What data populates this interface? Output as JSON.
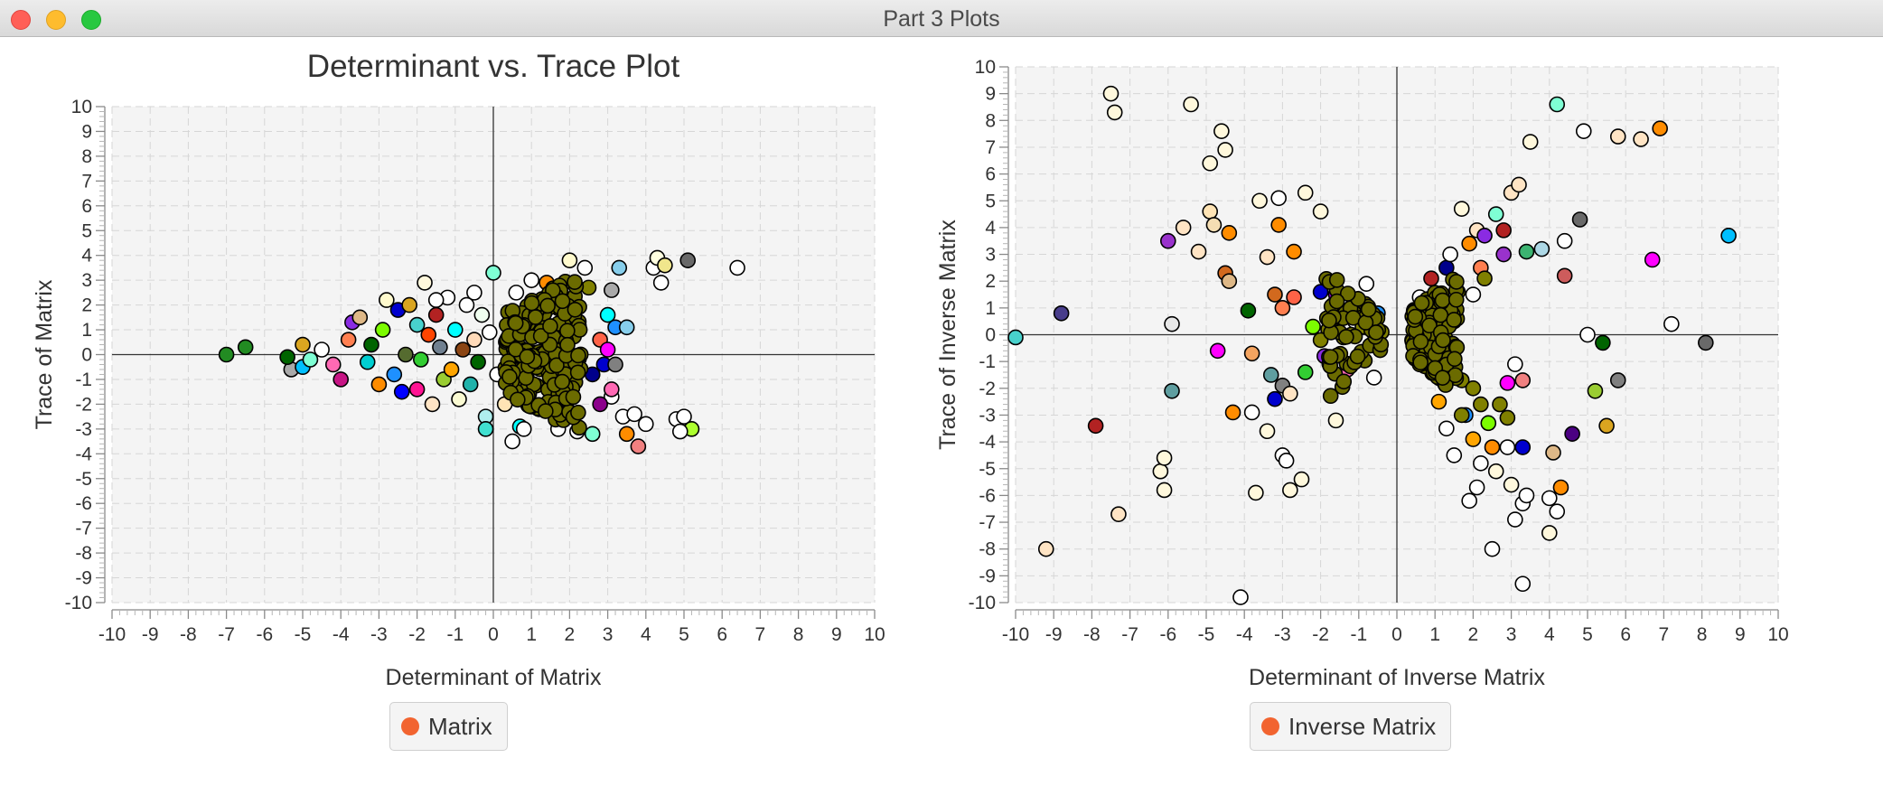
{
  "window": {
    "title": "Part 3 Plots"
  },
  "chart_data": [
    {
      "type": "scatter",
      "title": "Determinant vs. Trace Plot",
      "xlabel": "Determinant of Matrix",
      "ylabel": "Trace of Matrix",
      "xlim": [
        -10,
        10
      ],
      "ylim": [
        -10,
        10
      ],
      "xticks": [
        -10,
        -9,
        -8,
        -7,
        -6,
        -5,
        -4,
        -3,
        -2,
        -1,
        0,
        1,
        2,
        3,
        4,
        5,
        6,
        7,
        8,
        9,
        10
      ],
      "yticks": [
        -10,
        -9,
        -8,
        -7,
        -6,
        -5,
        -4,
        -3,
        -2,
        -1,
        0,
        1,
        2,
        3,
        4,
        5,
        6,
        7,
        8,
        9,
        10
      ],
      "grid": true,
      "legend_position": "bottom",
      "legend": [
        {
          "name": "Matrix",
          "color": "#f26430"
        }
      ],
      "points": [
        [
          -7.0,
          0.0,
          "#228b22"
        ],
        [
          -6.5,
          0.3,
          "#228b22"
        ],
        [
          -5.3,
          -0.6,
          "#a9a9a9"
        ],
        [
          -5.4,
          -0.1,
          "#006400"
        ],
        [
          -5.0,
          -0.5,
          "#00bfff"
        ],
        [
          -5.0,
          0.4,
          "#daa520"
        ],
        [
          -4.8,
          -0.2,
          "#7fffd4"
        ],
        [
          -4.5,
          0.2,
          "#ffffff"
        ],
        [
          -4.2,
          -0.4,
          "#ff69b4"
        ],
        [
          -4.0,
          -1.0,
          "#c71585"
        ],
        [
          -3.8,
          0.6,
          "#ff7f50"
        ],
        [
          -3.7,
          1.3,
          "#8a2be2"
        ],
        [
          -3.5,
          1.5,
          "#deb887"
        ],
        [
          -3.3,
          -0.3,
          "#00ced1"
        ],
        [
          -3.2,
          0.4,
          "#006400"
        ],
        [
          -3.0,
          -1.2,
          "#ff8c00"
        ],
        [
          -2.8,
          2.2,
          "#fffacd"
        ],
        [
          -2.9,
          1.0,
          "#7cfc00"
        ],
        [
          -2.6,
          -0.8,
          "#1e90ff"
        ],
        [
          -2.5,
          1.8,
          "#0000cd"
        ],
        [
          -2.4,
          -1.5,
          "#0000ff"
        ],
        [
          -2.3,
          0.0,
          "#556b2f"
        ],
        [
          -2.2,
          2.0,
          "#daa520"
        ],
        [
          -2.0,
          -1.4,
          "#ff1493"
        ],
        [
          -2.0,
          1.2,
          "#48d1cc"
        ],
        [
          -1.8,
          2.9,
          "#fff8dc"
        ],
        [
          -1.9,
          -0.2,
          "#32cd32"
        ],
        [
          -1.7,
          0.8,
          "#ff4500"
        ],
        [
          -1.6,
          -2.0,
          "#ffe4c4"
        ],
        [
          -1.5,
          1.6,
          "#b22222"
        ],
        [
          -1.4,
          0.3,
          "#708090"
        ],
        [
          -1.3,
          -1.0,
          "#9acd32"
        ],
        [
          -1.2,
          2.3,
          "#ffffff"
        ],
        [
          -1.1,
          -0.6,
          "#ffa500"
        ],
        [
          -1.0,
          1.0,
          "#00ffff"
        ],
        [
          -0.9,
          -1.8,
          "#fafad2"
        ],
        [
          -0.8,
          0.2,
          "#8b4513"
        ],
        [
          -0.7,
          2.0,
          "#ffffff"
        ],
        [
          -0.6,
          -1.2,
          "#20b2aa"
        ],
        [
          -0.5,
          0.6,
          "#ffdab9"
        ],
        [
          -0.4,
          -0.3,
          "#006400"
        ],
        [
          -0.3,
          1.6,
          "#f0fff0"
        ],
        [
          -0.2,
          -2.5,
          "#afeeee"
        ],
        [
          0.0,
          3.3,
          "#7fffd4"
        ],
        [
          -0.1,
          0.9,
          "#ffffff"
        ],
        [
          -0.2,
          -3.0,
          "#40e0d0"
        ],
        [
          0.1,
          -0.8,
          "#ffffff"
        ],
        [
          0.3,
          -2.0,
          "#ffe4b5"
        ],
        [
          0.5,
          -3.5,
          "#ffffff"
        ],
        [
          0.6,
          2.5,
          "#ffffff"
        ],
        [
          0.7,
          -2.9,
          "#00ffff"
        ],
        [
          1.0,
          3.0,
          "#ffffff"
        ],
        [
          1.2,
          -2.2,
          "#ffffff"
        ],
        [
          1.4,
          2.9,
          "#ff8c00"
        ],
        [
          1.7,
          -3.0,
          "#ffffff"
        ],
        [
          2.0,
          3.8,
          "#fffacd"
        ],
        [
          2.2,
          -3.1,
          "#ffffff"
        ],
        [
          2.4,
          3.5,
          "#ffffff"
        ],
        [
          2.6,
          -3.2,
          "#7fffd4"
        ],
        [
          2.8,
          0.6,
          "#ff6347"
        ],
        [
          2.9,
          -0.4,
          "#0000cd"
        ],
        [
          2.6,
          -0.8,
          "#00008b"
        ],
        [
          3.0,
          1.6,
          "#00ffff"
        ],
        [
          3.1,
          2.6,
          "#a9a9a9"
        ],
        [
          3.2,
          1.1,
          "#1e90ff"
        ],
        [
          3.3,
          3.5,
          "#87ceeb"
        ],
        [
          3.0,
          0.2,
          "#ff00ff"
        ],
        [
          3.1,
          -1.7,
          "#ffffff"
        ],
        [
          3.2,
          -0.4,
          "#808080"
        ],
        [
          3.4,
          -2.5,
          "#ffffff"
        ],
        [
          3.5,
          -3.2,
          "#ff8c00"
        ],
        [
          3.8,
          -3.7,
          "#f08080"
        ],
        [
          3.7,
          -2.4,
          "#ffffff"
        ],
        [
          4.0,
          -2.8,
          "#ffffff"
        ],
        [
          4.2,
          3.5,
          "#ffffff"
        ],
        [
          4.3,
          3.9,
          "#ffffe0"
        ],
        [
          4.4,
          2.9,
          "#ffffff"
        ],
        [
          4.5,
          3.6,
          "#f0e68c"
        ],
        [
          5.1,
          3.8,
          "#696969"
        ],
        [
          4.8,
          -2.6,
          "#ffffff"
        ],
        [
          5.0,
          -2.5,
          "#ffffff"
        ],
        [
          5.2,
          -3.0,
          "#adff2f"
        ],
        [
          4.9,
          -3.1,
          "#ffffff"
        ],
        [
          6.4,
          3.5,
          "#ffffff"
        ],
        [
          3.1,
          -1.4,
          "#ff69b4"
        ],
        [
          2.8,
          -2.0,
          "#8b008b"
        ],
        [
          3.5,
          1.1,
          "#87ceeb"
        ],
        [
          0.8,
          -3.0,
          "#ffffff"
        ],
        [
          -0.5,
          2.5,
          "#ffffff"
        ],
        [
          -1.5,
          2.2,
          "#ffffff"
        ],
        [
          1.8,
          2.2,
          "#ff8c00"
        ],
        [
          2.5,
          2.7,
          "#808000"
        ]
      ],
      "dense_cluster_color": "#6b6b00"
    },
    {
      "type": "scatter",
      "title": "",
      "xlabel": "Determinant of Inverse Matrix",
      "ylabel": "Trace of Inverse Matrix",
      "xlim": [
        -10,
        10
      ],
      "ylim": [
        -10,
        10
      ],
      "xticks": [
        -10,
        -9,
        -8,
        -7,
        -6,
        -5,
        -4,
        -3,
        -2,
        -1,
        0,
        1,
        2,
        3,
        4,
        5,
        6,
        7,
        8,
        9,
        10
      ],
      "yticks": [
        -10,
        -9,
        -8,
        -7,
        -6,
        -5,
        -4,
        -3,
        -2,
        -1,
        0,
        1,
        2,
        3,
        4,
        5,
        6,
        7,
        8,
        9,
        10
      ],
      "grid": true,
      "legend_position": "bottom",
      "legend": [
        {
          "name": "Inverse Matrix",
          "color": "#f26430"
        }
      ],
      "points": [
        [
          -10.0,
          -0.1,
          "#48d1cc"
        ],
        [
          -9.2,
          -8.0,
          "#ffe4c4"
        ],
        [
          -8.8,
          0.8,
          "#483d8b"
        ],
        [
          -7.9,
          -3.4,
          "#b22222"
        ],
        [
          -7.5,
          9.0,
          "#fff8dc"
        ],
        [
          -7.4,
          8.3,
          "#fff8dc"
        ],
        [
          -7.3,
          -6.7,
          "#ffe4c4"
        ],
        [
          -6.0,
          3.5,
          "#9932cc"
        ],
        [
          -5.9,
          0.4,
          "#e6e6e6"
        ],
        [
          -5.9,
          -2.1,
          "#5f9ea0"
        ],
        [
          -6.2,
          -5.1,
          "#fff8dc"
        ],
        [
          -6.1,
          -4.6,
          "#fff8dc"
        ],
        [
          -6.1,
          -5.8,
          "#fff8dc"
        ],
        [
          -5.6,
          4.0,
          "#ffe4c4"
        ],
        [
          -5.4,
          8.6,
          "#fff8dc"
        ],
        [
          -5.2,
          3.1,
          "#ffe4c4"
        ],
        [
          -4.9,
          4.6,
          "#ffe4b5"
        ],
        [
          -4.8,
          4.1,
          "#f5deb3"
        ],
        [
          -4.6,
          7.6,
          "#fff8dc"
        ],
        [
          -4.5,
          6.9,
          "#fff8dc"
        ],
        [
          -4.9,
          6.4,
          "#fff8dc"
        ],
        [
          -4.4,
          3.8,
          "#ff8c00"
        ],
        [
          -4.5,
          2.3,
          "#d2691e"
        ],
        [
          -4.4,
          2.0,
          "#deb887"
        ],
        [
          -4.7,
          -0.6,
          "#ff00ff"
        ],
        [
          -4.3,
          -2.9,
          "#ff8c00"
        ],
        [
          -3.9,
          0.9,
          "#006400"
        ],
        [
          -3.8,
          -0.7,
          "#f4a460"
        ],
        [
          -3.8,
          -2.9,
          "#ffffff"
        ],
        [
          -3.7,
          -5.9,
          "#fff8dc"
        ],
        [
          -4.1,
          -9.8,
          "#ffffff"
        ],
        [
          -3.6,
          5.0,
          "#fff8dc"
        ],
        [
          -3.4,
          2.9,
          "#ffe4c4"
        ],
        [
          -3.1,
          5.1,
          "#ffffff"
        ],
        [
          -3.1,
          4.1,
          "#ff8c00"
        ],
        [
          -3.0,
          1.0,
          "#ff7f50"
        ],
        [
          -3.4,
          -3.6,
          "#fff8dc"
        ],
        [
          -3.2,
          -2.4,
          "#0000cd"
        ],
        [
          -3.0,
          -4.5,
          "#ffffff"
        ],
        [
          -2.9,
          -4.7,
          "#ffffff"
        ],
        [
          -2.8,
          -5.8,
          "#fff8dc"
        ],
        [
          -2.5,
          -5.4,
          "#fff8dc"
        ],
        [
          -2.4,
          5.3,
          "#fff8dc"
        ],
        [
          -2.0,
          4.6,
          "#fff8dc"
        ],
        [
          -2.7,
          3.1,
          "#ff8c00"
        ],
        [
          -2.7,
          1.4,
          "#ff6347"
        ],
        [
          -3.2,
          1.5,
          "#d2691e"
        ],
        [
          -3.3,
          -1.5,
          "#5f9ea0"
        ],
        [
          -3.0,
          -1.9,
          "#808080"
        ],
        [
          -2.8,
          -2.2,
          "#ffe4c4"
        ],
        [
          -2.4,
          -1.4,
          "#32cd32"
        ],
        [
          -2.2,
          0.3,
          "#7cfc00"
        ],
        [
          -2.0,
          1.6,
          "#0000cd"
        ],
        [
          -1.9,
          -0.8,
          "#8a2be2"
        ],
        [
          -1.6,
          1.5,
          "#9400d3"
        ],
        [
          -1.5,
          0.9,
          "#006400"
        ],
        [
          -1.6,
          -3.2,
          "#fff8dc"
        ],
        [
          -1.3,
          -1.3,
          "#ff69b4"
        ],
        [
          -1.1,
          0.5,
          "#ffffff"
        ],
        [
          -0.8,
          1.9,
          "#ffffff"
        ],
        [
          -0.6,
          -1.6,
          "#ffffff"
        ],
        [
          -0.5,
          0.8,
          "#1e90ff"
        ],
        [
          1.7,
          4.7,
          "#fff8dc"
        ],
        [
          1.9,
          3.4,
          "#ff8c00"
        ],
        [
          2.1,
          3.9,
          "#ffe4c4"
        ],
        [
          2.3,
          3.7,
          "#8a2be2"
        ],
        [
          2.6,
          4.5,
          "#7fffd4"
        ],
        [
          2.8,
          3.0,
          "#9932cc"
        ],
        [
          3.0,
          5.3,
          "#ffe4c4"
        ],
        [
          3.2,
          5.6,
          "#ffe4c4"
        ],
        [
          3.4,
          3.1,
          "#3cb371"
        ],
        [
          3.5,
          7.2,
          "#fff8dc"
        ],
        [
          3.8,
          3.2,
          "#add8e6"
        ],
        [
          4.2,
          8.6,
          "#7fffd4"
        ],
        [
          4.4,
          3.5,
          "#ffffff"
        ],
        [
          4.9,
          7.6,
          "#ffffff"
        ],
        [
          4.8,
          4.3,
          "#696969"
        ],
        [
          4.4,
          2.2,
          "#cd5c5c"
        ],
        [
          5.0,
          0.0,
          "#ffffff"
        ],
        [
          5.4,
          -0.3,
          "#006400"
        ],
        [
          5.8,
          7.4,
          "#ffe4c4"
        ],
        [
          6.4,
          7.3,
          "#ffe4c4"
        ],
        [
          6.9,
          7.7,
          "#ff8c00"
        ],
        [
          6.7,
          2.8,
          "#ff00ff"
        ],
        [
          7.2,
          0.4,
          "#ffffff"
        ],
        [
          8.1,
          -0.3,
          "#696969"
        ],
        [
          8.7,
          3.7,
          "#00bfff"
        ],
        [
          5.2,
          -2.1,
          "#9acd32"
        ],
        [
          5.5,
          -3.4,
          "#daa520"
        ],
        [
          5.8,
          -1.7,
          "#808080"
        ],
        [
          4.6,
          -3.7,
          "#4b0082"
        ],
        [
          4.1,
          -4.4,
          "#deb887"
        ],
        [
          4.3,
          -5.7,
          "#ff8c00"
        ],
        [
          4.2,
          -6.6,
          "#ffffff"
        ],
        [
          4.0,
          -6.1,
          "#ffffff"
        ],
        [
          4.0,
          -7.4,
          "#fff8dc"
        ],
        [
          3.3,
          -4.2,
          "#0000cd"
        ],
        [
          3.3,
          -1.7,
          "#f08080"
        ],
        [
          3.1,
          -1.1,
          "#ffffff"
        ],
        [
          2.9,
          -1.8,
          "#ff00ff"
        ],
        [
          2.9,
          -4.2,
          "#ffffff"
        ],
        [
          3.0,
          -5.6,
          "#fff8dc"
        ],
        [
          3.1,
          -6.9,
          "#ffffff"
        ],
        [
          3.3,
          -6.3,
          "#ffffff"
        ],
        [
          3.4,
          -6.0,
          "#ffffff"
        ],
        [
          3.3,
          -9.3,
          "#ffffff"
        ],
        [
          2.6,
          -5.1,
          "#fff8dc"
        ],
        [
          2.5,
          -8.0,
          "#ffffff"
        ],
        [
          2.1,
          -5.7,
          "#ffffff"
        ],
        [
          1.9,
          -6.2,
          "#ffffff"
        ],
        [
          2.2,
          -4.8,
          "#ffffff"
        ],
        [
          2.5,
          -4.2,
          "#ff8c00"
        ],
        [
          2.4,
          -3.3,
          "#7cfc00"
        ],
        [
          2.0,
          -3.9,
          "#ffa500"
        ],
        [
          1.8,
          -3.0,
          "#1e90ff"
        ],
        [
          1.3,
          -3.5,
          "#ffffff"
        ],
        [
          1.5,
          -4.5,
          "#ffffff"
        ],
        [
          1.1,
          -2.5,
          "#ffa500"
        ],
        [
          0.9,
          2.1,
          "#b22222"
        ],
        [
          1.3,
          2.5,
          "#00008b"
        ],
        [
          1.4,
          3.0,
          "#ffffff"
        ],
        [
          0.7,
          0.5,
          "#ffe4c4"
        ],
        [
          0.9,
          -0.7,
          "#0000ff"
        ],
        [
          1.1,
          -1.6,
          "#8a2be2"
        ],
        [
          0.6,
          1.4,
          "#ffffff"
        ],
        [
          2.0,
          1.5,
          "#ffffff"
        ],
        [
          2.2,
          2.5,
          "#ff7f50"
        ],
        [
          2.8,
          3.9,
          "#b22222"
        ],
        [
          2.3,
          2.1,
          "#808000"
        ],
        [
          1.5,
          0.5,
          "#808000"
        ],
        [
          1.7,
          -1.7,
          "#808000"
        ],
        [
          2.0,
          -2.0,
          "#808000"
        ],
        [
          2.2,
          -2.6,
          "#808000"
        ],
        [
          2.7,
          -2.6,
          "#808000"
        ],
        [
          2.9,
          -3.1,
          "#808000"
        ],
        [
          1.7,
          -3.0,
          "#808000"
        ],
        [
          -1.8,
          0.2,
          "#808000"
        ],
        [
          -1.4,
          -0.1,
          "#808000"
        ],
        [
          -2.0,
          -0.2,
          "#808000"
        ],
        [
          -1.2,
          0.0,
          "#808000"
        ],
        [
          -0.9,
          0.3,
          "#808000"
        ],
        [
          -0.7,
          -0.4,
          "#808000"
        ],
        [
          -0.4,
          0.1,
          "#808000"
        ],
        [
          0.4,
          -0.2,
          "#808000"
        ],
        [
          0.8,
          0.3,
          "#808000"
        ],
        [
          1.1,
          0.6,
          "#808000"
        ],
        [
          1.3,
          1.2,
          "#808000"
        ],
        [
          1.6,
          1.6,
          "#808000"
        ],
        [
          1.2,
          -1.0,
          "#808000"
        ],
        [
          1.5,
          -1.5,
          "#808000"
        ]
      ],
      "dense_cluster_color": "#6b6b00"
    }
  ]
}
